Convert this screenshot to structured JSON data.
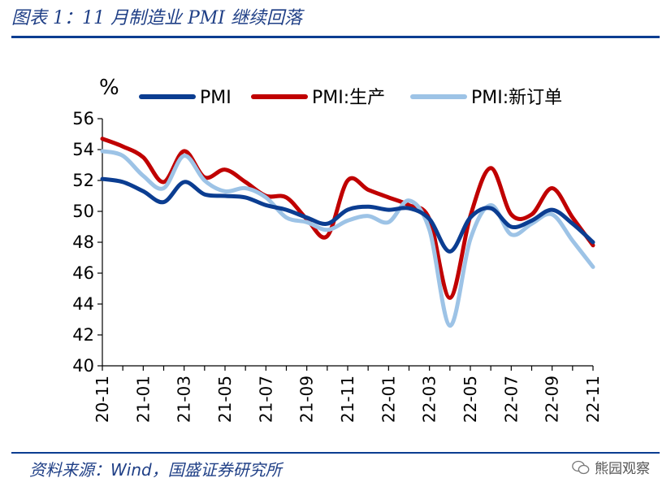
{
  "header": {
    "title": "图表 1：11 月制造业 PMI 继续回落"
  },
  "footer": {
    "source": "资料来源：Wind，国盛证券研究所",
    "watermark": "熊园观察"
  },
  "chart_data": {
    "type": "line",
    "title": "图表 1：11 月制造业 PMI 继续回落",
    "ylabel": "%",
    "xlabel": "",
    "ylim": [
      40,
      56
    ],
    "yticks": [
      40,
      42,
      44,
      46,
      48,
      50,
      52,
      54,
      56
    ],
    "grid": false,
    "legend_position": "top",
    "categories": [
      "20-11",
      "20-12",
      "21-01",
      "21-02",
      "21-03",
      "21-04",
      "21-05",
      "21-06",
      "21-07",
      "21-08",
      "21-09",
      "21-10",
      "21-11",
      "21-12",
      "22-01",
      "22-02",
      "22-03",
      "22-04",
      "22-05",
      "22-06",
      "22-07",
      "22-08",
      "22-09",
      "22-10",
      "22-11"
    ],
    "tick_labels": [
      "20-11",
      "21-01",
      "21-03",
      "21-05",
      "21-07",
      "21-09",
      "21-11",
      "22-01",
      "22-03",
      "22-05",
      "22-07",
      "22-09",
      "22-11"
    ],
    "series": [
      {
        "name": "PMI",
        "color": "#0B3D91",
        "values": [
          52.1,
          51.9,
          51.3,
          50.6,
          51.9,
          51.1,
          51.0,
          50.9,
          50.4,
          50.1,
          49.6,
          49.2,
          50.1,
          50.3,
          50.1,
          50.2,
          49.5,
          47.4,
          49.6,
          50.2,
          49.0,
          49.4,
          50.1,
          49.2,
          48.0
        ]
      },
      {
        "name": "PMI:生产",
        "color": "#C00000",
        "values": [
          54.7,
          54.2,
          53.5,
          51.9,
          53.9,
          52.2,
          52.7,
          51.9,
          51.0,
          50.9,
          49.5,
          48.4,
          52.0,
          51.4,
          50.9,
          50.4,
          49.5,
          44.4,
          49.7,
          52.8,
          49.8,
          49.8,
          51.5,
          49.6,
          47.8
        ]
      },
      {
        "name": "PMI:新订单",
        "color": "#9DC3E6",
        "values": [
          53.9,
          53.6,
          52.3,
          51.5,
          53.6,
          52.0,
          51.3,
          51.5,
          50.9,
          49.6,
          49.3,
          48.8,
          49.4,
          49.7,
          49.3,
          50.7,
          48.8,
          42.6,
          48.2,
          50.4,
          48.5,
          49.2,
          49.8,
          48.1,
          46.4
        ]
      }
    ]
  }
}
